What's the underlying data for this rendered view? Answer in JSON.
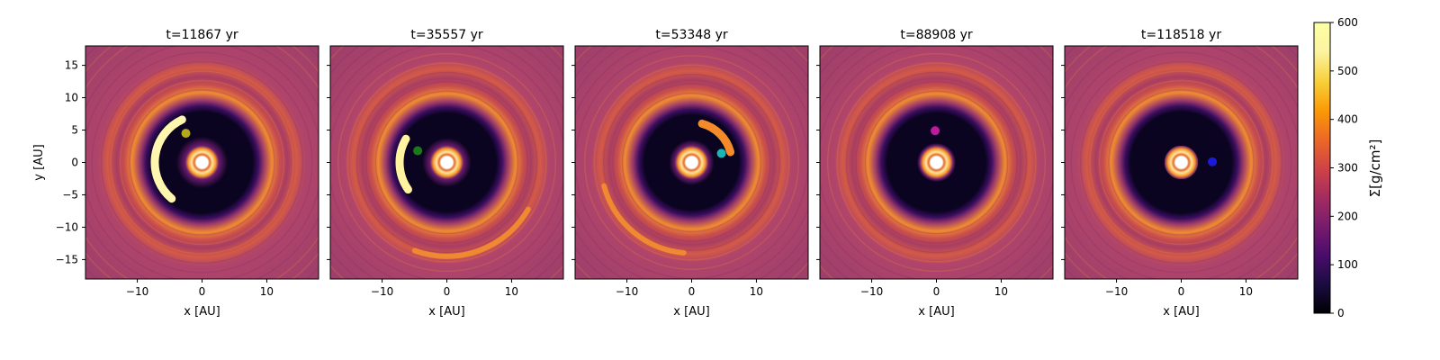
{
  "chart_data": {
    "type": "heatmap",
    "description_type": "surface density maps",
    "xlabel": "x [AU]",
    "ylabel": "y [AU]",
    "xlim": [
      -18,
      18
    ],
    "ylim": [
      -18,
      18
    ],
    "xticks": [
      -10,
      0,
      10
    ],
    "yticks": [
      -15,
      -10,
      -5,
      0,
      5,
      10,
      15
    ],
    "colorbar": {
      "label": "Σ[g/cm²]",
      "range": [
        0,
        600
      ],
      "ticks": [
        0,
        100,
        200,
        300,
        400,
        500,
        600
      ],
      "colormap": "inferno"
    },
    "panels": [
      {
        "title": "t=11867 yr",
        "planet": {
          "x": -2.5,
          "y": 4.5,
          "color": "#b5a81e"
        },
        "gap": {
          "inner_radius": 4.0,
          "outer_radius": 9.0
        },
        "arc": {
          "start_deg": 115,
          "end_deg": 230,
          "radius": 7.3,
          "color": "#fff6b0"
        },
        "spiral_arc": null
      },
      {
        "title": "t=35557 yr",
        "planet": {
          "x": -4.5,
          "y": 1.8,
          "color": "#1a7a1a"
        },
        "gap": {
          "inner_radius": 3.8,
          "outer_radius": 8.8
        },
        "arc": {
          "start_deg": 150,
          "end_deg": 215,
          "radius": 7.3,
          "color": "#fff2a0"
        },
        "spiral_arc": {
          "start_deg": 250,
          "end_deg": 330,
          "radius": 14.5
        }
      },
      {
        "title": "t=53348 yr",
        "planet": {
          "x": 4.6,
          "y": 1.4,
          "color": "#1ab5b5"
        },
        "gap": {
          "inner_radius": 3.5,
          "outer_radius": 8.5
        },
        "arc": {
          "start_deg": 15,
          "end_deg": 75,
          "radius": 6.2,
          "color": "#f58a2a"
        },
        "spiral_arc": {
          "start_deg": 195,
          "end_deg": 265,
          "radius": 14.0
        }
      },
      {
        "title": "t=88908 yr",
        "planet": {
          "x": -0.2,
          "y": 4.9,
          "color": "#c0189e"
        },
        "gap": {
          "inner_radius": 3.0,
          "outer_radius": 8.8
        },
        "arc": null,
        "spiral_arc": null
      },
      {
        "title": "t=118518 yr",
        "planet": {
          "x": 4.8,
          "y": 0.1,
          "color": "#1a1ad8"
        },
        "gap": {
          "inner_radius": 2.5,
          "outer_radius": 9.0
        },
        "arc": null,
        "spiral_arc": null
      }
    ]
  }
}
